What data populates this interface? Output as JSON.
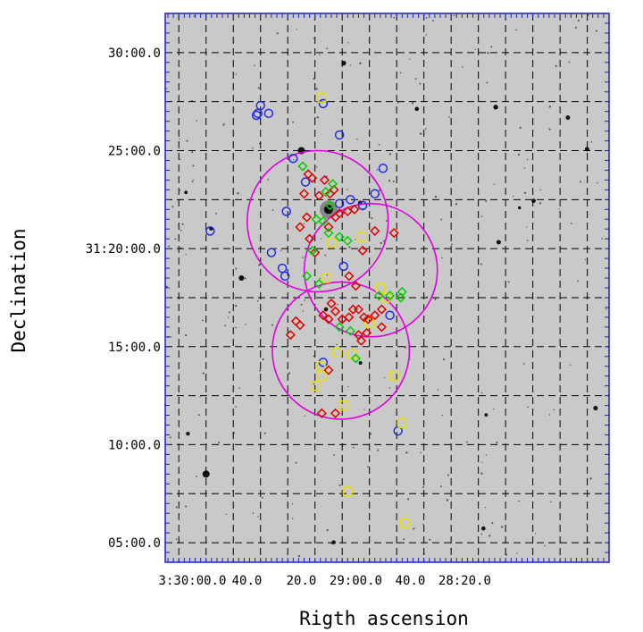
{
  "chart_data": {
    "type": "scatter",
    "title": "",
    "xlabel": "Rigth ascension",
    "ylabel": "Declination",
    "xlim": [
      210.0,
      47.0
    ],
    "ylim": [
      4.0,
      32.0
    ],
    "x_ticks": [
      {
        "value": 200,
        "label": "3:30:00.0"
      },
      {
        "value": 180,
        "label": "40.0"
      },
      {
        "value": 160,
        "label": "20.0"
      },
      {
        "value": 140,
        "label": "29:00.0"
      },
      {
        "value": 120,
        "label": "40.0"
      },
      {
        "value": 100,
        "label": "28:20.0"
      }
    ],
    "y_ticks": [
      {
        "value": 30,
        "label": "30:00.0"
      },
      {
        "value": 25,
        "label": "25:00.0"
      },
      {
        "value": 20,
        "label": "31:20:00.0"
      },
      {
        "value": 15,
        "label": "15:00.0"
      },
      {
        "value": 10,
        "label": "10:00.0"
      },
      {
        "value": 5,
        "label": "05:00.0"
      }
    ],
    "grid": true,
    "background": "grayscale sky image",
    "colors": {
      "blue": "#1f2de0",
      "yellow": "#e8e000",
      "red": "#e00000",
      "green": "#00d000",
      "circle": "#e000e0",
      "grid": "#000000",
      "frame": "#2020c0"
    },
    "circles": [
      {
        "ra": 154.0,
        "dec": 21.4,
        "radius_arcmin": 3.6
      },
      {
        "ra": 134.5,
        "dec": 18.9,
        "radius_arcmin": 3.4
      },
      {
        "ra": 145.5,
        "dec": 14.8,
        "radius_arcmin": 3.5
      }
    ],
    "series": [
      {
        "name": "blue",
        "marker": "circle",
        "points": [
          [
            193.5,
            20.9
          ],
          [
            176.0,
            26.9
          ],
          [
            175.0,
            27.3
          ],
          [
            176.5,
            26.8
          ],
          [
            172.0,
            26.9
          ],
          [
            163.0,
            24.6
          ],
          [
            165.5,
            21.9
          ],
          [
            171.0,
            19.8
          ],
          [
            167.0,
            19.0
          ],
          [
            166.0,
            18.6
          ],
          [
            158.5,
            23.4
          ],
          [
            152.0,
            27.4
          ],
          [
            146.0,
            25.8
          ],
          [
            146.0,
            22.3
          ],
          [
            142.0,
            22.5
          ],
          [
            137.5,
            22.2
          ],
          [
            133.0,
            22.8
          ],
          [
            130.0,
            24.1
          ],
          [
            127.5,
            16.6
          ],
          [
            124.5,
            10.7
          ],
          [
            144.5,
            19.1
          ],
          [
            152.0,
            14.2
          ]
        ]
      },
      {
        "name": "yellow",
        "marker": "square",
        "points": [
          [
            152.5,
            27.7
          ],
          [
            149.0,
            20.3
          ],
          [
            151.0,
            18.5
          ],
          [
            153.0,
            14.0
          ],
          [
            155.0,
            13.0
          ],
          [
            152.5,
            13.5
          ],
          [
            147.0,
            14.7
          ],
          [
            144.5,
            12.0
          ],
          [
            141.5,
            14.6
          ],
          [
            138.0,
            20.6
          ],
          [
            135.0,
            16.2
          ],
          [
            131.0,
            18.0
          ],
          [
            129.0,
            17.5
          ],
          [
            126.0,
            13.5
          ],
          [
            123.0,
            11.1
          ],
          [
            143.0,
            7.6
          ],
          [
            122.0,
            6.0
          ]
        ]
      },
      {
        "name": "red",
        "marker": "diamond",
        "points": [
          [
            160.5,
            21.1
          ],
          [
            158.0,
            21.6
          ],
          [
            157.0,
            20.5
          ],
          [
            155.0,
            19.8
          ],
          [
            159.0,
            22.8
          ],
          [
            157.5,
            23.8
          ],
          [
            156.0,
            23.6
          ],
          [
            153.5,
            22.7
          ],
          [
            151.5,
            23.5
          ],
          [
            149.5,
            22.8
          ],
          [
            148.0,
            23.0
          ],
          [
            147.5,
            21.6
          ],
          [
            150.0,
            21.1
          ],
          [
            146.0,
            21.8
          ],
          [
            143.0,
            21.9
          ],
          [
            140.5,
            22.0
          ],
          [
            137.5,
            19.9
          ],
          [
            133.0,
            20.9
          ],
          [
            149.0,
            17.2
          ],
          [
            147.5,
            16.8
          ],
          [
            152.0,
            16.6
          ],
          [
            150.0,
            16.4
          ],
          [
            145.0,
            16.4
          ],
          [
            142.5,
            16.5
          ],
          [
            141.0,
            16.9
          ],
          [
            139.0,
            16.9
          ],
          [
            137.0,
            16.5
          ],
          [
            135.5,
            16.4
          ],
          [
            133.0,
            16.6
          ],
          [
            130.5,
            16.9
          ],
          [
            136.0,
            15.7
          ],
          [
            139.0,
            15.6
          ],
          [
            140.0,
            18.1
          ],
          [
            142.5,
            18.6
          ],
          [
            138.0,
            15.3
          ],
          [
            130.5,
            16.0
          ],
          [
            150.0,
            13.8
          ],
          [
            152.5,
            11.6
          ],
          [
            147.5,
            11.6
          ],
          [
            164.0,
            15.6
          ],
          [
            162.0,
            16.3
          ],
          [
            160.5,
            16.1
          ],
          [
            126.0,
            20.8
          ]
        ]
      },
      {
        "name": "green",
        "marker": "diamond",
        "points": [
          [
            159.5,
            24.2
          ],
          [
            148.5,
            23.3
          ],
          [
            151.0,
            22.9
          ],
          [
            149.5,
            22.2
          ],
          [
            154.5,
            21.5
          ],
          [
            152.0,
            21.4
          ],
          [
            150.0,
            20.8
          ],
          [
            146.0,
            20.6
          ],
          [
            143.0,
            20.4
          ],
          [
            156.0,
            19.9
          ],
          [
            158.0,
            18.6
          ],
          [
            153.5,
            18.2
          ],
          [
            146.0,
            16.0
          ],
          [
            142.0,
            15.8
          ],
          [
            140.0,
            14.4
          ],
          [
            127.5,
            17.6
          ],
          [
            131.5,
            17.6
          ],
          [
            123.0,
            17.8
          ],
          [
            123.5,
            17.5
          ]
        ]
      }
    ]
  }
}
